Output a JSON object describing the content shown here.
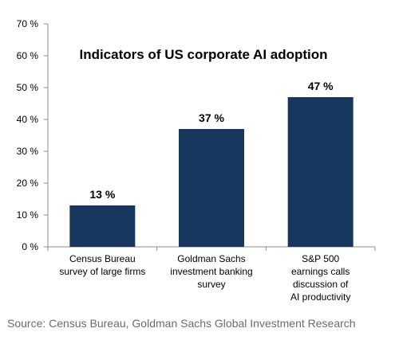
{
  "chart_data": {
    "type": "bar",
    "title": "Indicators of US corporate AI adoption",
    "categories": [
      [
        "Census Bureau",
        "survey of large firms"
      ],
      [
        "Goldman Sachs",
        "investment banking",
        "survey"
      ],
      [
        "S&P 500",
        "earnings calls",
        "discussion of",
        "AI productivity"
      ]
    ],
    "values": [
      13,
      37,
      47
    ],
    "data_labels": [
      "13 %",
      "37 %",
      "47 %"
    ],
    "ylim": [
      0,
      70
    ],
    "yticks": [
      0,
      10,
      20,
      30,
      40,
      50,
      60,
      70
    ],
    "ytick_labels": [
      "0 %",
      "10 %",
      "20 %",
      "30 %",
      "40 %",
      "50 %",
      "60 %",
      "70 %"
    ],
    "xlabel": "",
    "ylabel": "",
    "grid": false,
    "bar_color": "#17375e"
  },
  "source": "Source: Census Bureau, Goldman Sachs Global Investment Research"
}
